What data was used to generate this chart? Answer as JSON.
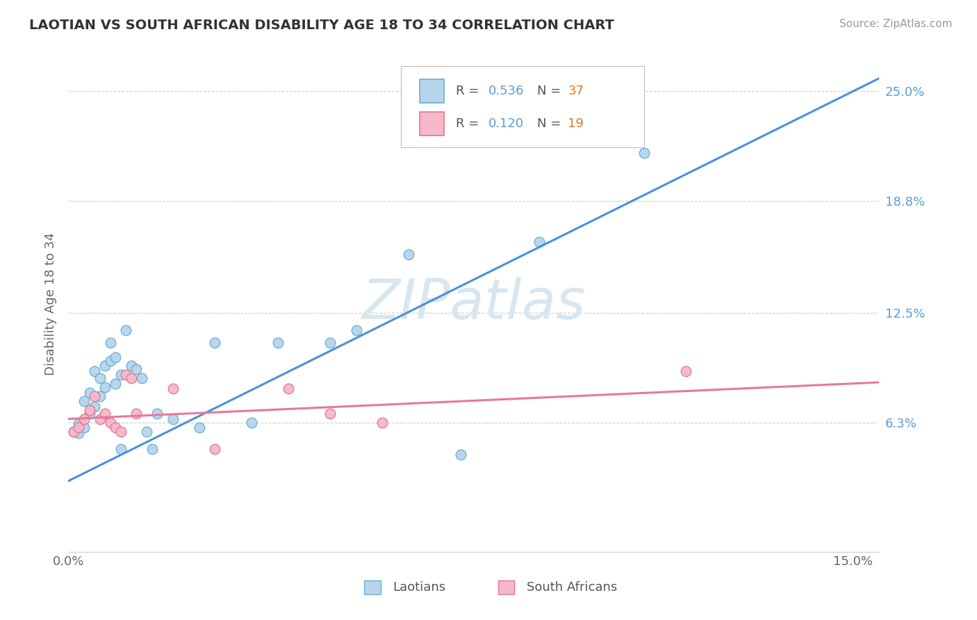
{
  "title": "LAOTIAN VS SOUTH AFRICAN DISABILITY AGE 18 TO 34 CORRELATION CHART",
  "source": "Source: ZipAtlas.com",
  "ylabel": "Disability Age 18 to 34",
  "xlim": [
    0.0,
    0.155
  ],
  "ylim": [
    -0.01,
    0.27
  ],
  "xtick_positions": [
    0.0,
    0.15
  ],
  "xticklabels": [
    "0.0%",
    "15.0%"
  ],
  "ytick_positions": [
    0.063,
    0.125,
    0.188,
    0.25
  ],
  "ytick_labels": [
    "6.3%",
    "12.5%",
    "18.8%",
    "25.0%"
  ],
  "laotian_R": "0.536",
  "laotian_N": "37",
  "sa_R": "0.120",
  "sa_N": "19",
  "laotian_color": "#b8d4ea",
  "laotian_edge": "#6aaed6",
  "sa_color": "#f4b8c8",
  "sa_edge": "#e07898",
  "line_laotian_color": "#4a90d9",
  "line_sa_color": "#e8789a",
  "watermark_color": "#d8e6f0",
  "background_color": "#ffffff",
  "grid_color": "#cccccc",
  "laotian_x": [
    0.001,
    0.002,
    0.002,
    0.003,
    0.003,
    0.004,
    0.004,
    0.005,
    0.005,
    0.006,
    0.006,
    0.007,
    0.007,
    0.008,
    0.008,
    0.009,
    0.009,
    0.01,
    0.01,
    0.011,
    0.012,
    0.013,
    0.014,
    0.015,
    0.016,
    0.017,
    0.02,
    0.025,
    0.028,
    0.035,
    0.04,
    0.05,
    0.055,
    0.065,
    0.075,
    0.09,
    0.11
  ],
  "laotian_y": [
    0.058,
    0.062,
    0.057,
    0.06,
    0.075,
    0.068,
    0.08,
    0.072,
    0.092,
    0.088,
    0.078,
    0.095,
    0.083,
    0.098,
    0.108,
    0.085,
    0.1,
    0.09,
    0.048,
    0.115,
    0.095,
    0.093,
    0.088,
    0.058,
    0.048,
    0.068,
    0.065,
    0.06,
    0.108,
    0.063,
    0.108,
    0.108,
    0.115,
    0.158,
    0.045,
    0.165,
    0.215
  ],
  "sa_x": [
    0.001,
    0.002,
    0.003,
    0.004,
    0.005,
    0.006,
    0.007,
    0.008,
    0.009,
    0.01,
    0.011,
    0.012,
    0.013,
    0.02,
    0.028,
    0.042,
    0.05,
    0.06,
    0.118
  ],
  "sa_y": [
    0.058,
    0.06,
    0.065,
    0.07,
    0.078,
    0.065,
    0.068,
    0.063,
    0.06,
    0.058,
    0.09,
    0.088,
    0.068,
    0.082,
    0.048,
    0.082,
    0.068,
    0.063,
    0.092
  ]
}
